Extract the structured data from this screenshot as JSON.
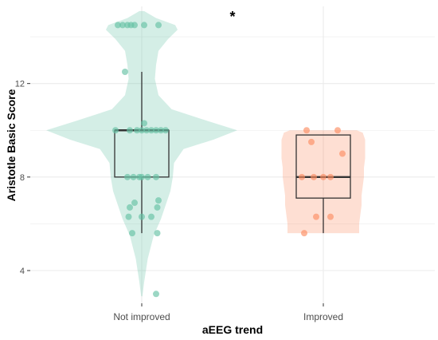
{
  "chart_data": {
    "type": "violin-box-jitter",
    "xlabel": "aEEG trend",
    "ylabel": "Aristotle Basic Score",
    "annotation": "*",
    "categories": [
      "Not improved",
      "Improved"
    ],
    "ylim": [
      2.6,
      15.3
    ],
    "yticks": [
      4,
      8,
      12
    ],
    "grid": true,
    "legend": "none",
    "colors": {
      "Not improved": "#66c2a5",
      "Improved": "#fc8d62",
      "box_stroke": "#333333",
      "grid": "#ebebeb"
    },
    "groups": [
      {
        "name": "Not improved",
        "box": {
          "whisker_low": 5.6,
          "q1": 8.0,
          "median": 10.0,
          "q3": 10.0,
          "whisker_high": 12.5
        },
        "violin": [
          [
            2.9,
            0.005
          ],
          [
            3.5,
            0.02
          ],
          [
            4.5,
            0.05
          ],
          [
            5.5,
            0.1
          ],
          [
            6.2,
            0.16
          ],
          [
            6.8,
            0.2
          ],
          [
            7.4,
            0.24
          ],
          [
            8.0,
            0.26
          ],
          [
            8.6,
            0.27
          ],
          [
            9.2,
            0.35
          ],
          [
            9.6,
            0.6
          ],
          [
            10.0,
            0.8
          ],
          [
            10.4,
            0.55
          ],
          [
            10.9,
            0.25
          ],
          [
            11.5,
            0.14
          ],
          [
            12.2,
            0.11
          ],
          [
            12.8,
            0.12
          ],
          [
            13.4,
            0.14
          ],
          [
            13.9,
            0.22
          ],
          [
            14.3,
            0.3
          ],
          [
            14.5,
            0.28
          ],
          [
            14.8,
            0.12
          ],
          [
            15.1,
            0.02
          ]
        ],
        "points": [
          [
            -0.2,
            14.5
          ],
          [
            -0.16,
            14.5
          ],
          [
            -0.12,
            14.5
          ],
          [
            -0.09,
            14.5
          ],
          [
            -0.06,
            14.5
          ],
          [
            0.02,
            14.5
          ],
          [
            0.14,
            14.5
          ],
          [
            -0.14,
            12.5
          ],
          [
            0.02,
            10.3
          ],
          [
            -0.22,
            10.0
          ],
          [
            -0.1,
            10.0
          ],
          [
            -0.04,
            10.0
          ],
          [
            0.0,
            10.0
          ],
          [
            0.04,
            10.0
          ],
          [
            0.08,
            10.0
          ],
          [
            0.12,
            10.0
          ],
          [
            0.16,
            10.0
          ],
          [
            0.2,
            10.0
          ],
          [
            -0.12,
            8.0
          ],
          [
            -0.07,
            8.0
          ],
          [
            -0.02,
            8.0
          ],
          [
            0.0,
            8.0
          ],
          [
            0.05,
            8.0
          ],
          [
            0.12,
            8.0
          ],
          [
            0.14,
            7.0
          ],
          [
            -0.06,
            6.9
          ],
          [
            -0.1,
            6.7
          ],
          [
            0.13,
            6.7
          ],
          [
            -0.11,
            6.3
          ],
          [
            0.0,
            6.3
          ],
          [
            0.08,
            6.3
          ],
          [
            -0.08,
            5.6
          ],
          [
            0.13,
            5.6
          ],
          [
            0.12,
            3.0
          ]
        ]
      },
      {
        "name": "Improved",
        "box": {
          "whisker_low": 5.6,
          "q1": 7.1,
          "median": 8.0,
          "q3": 9.8,
          "whisker_high": 9.8
        },
        "violin": [
          [
            5.6,
            0.3
          ],
          [
            6.0,
            0.3
          ],
          [
            6.4,
            0.31
          ],
          [
            6.8,
            0.32
          ],
          [
            7.2,
            0.32
          ],
          [
            7.6,
            0.33
          ],
          [
            8.0,
            0.34
          ],
          [
            8.4,
            0.34
          ],
          [
            8.8,
            0.35
          ],
          [
            9.2,
            0.35
          ],
          [
            9.6,
            0.35
          ],
          [
            9.9,
            0.33
          ],
          [
            10.0,
            0.28
          ]
        ],
        "points": [
          [
            -0.14,
            10.0
          ],
          [
            -0.1,
            9.5
          ],
          [
            0.12,
            10.0
          ],
          [
            0.16,
            9.0
          ],
          [
            -0.18,
            8.0
          ],
          [
            -0.08,
            8.0
          ],
          [
            0.0,
            8.0
          ],
          [
            0.06,
            8.0
          ],
          [
            -0.06,
            6.3
          ],
          [
            0.06,
            6.3
          ],
          [
            -0.16,
            5.6
          ]
        ]
      }
    ]
  }
}
